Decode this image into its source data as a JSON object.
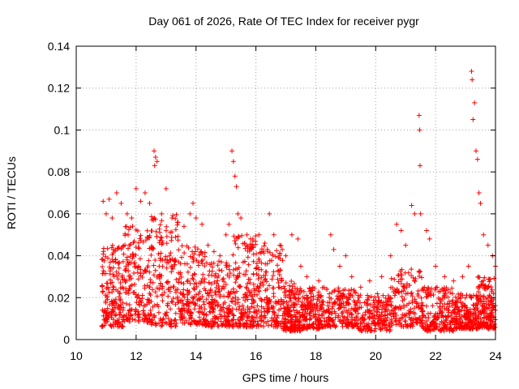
{
  "chart_data": {
    "type": "scatter",
    "title": "Day 061 of 2026, Rate Of TEC Index for receiver pygr",
    "xlabel": "GPS time / hours",
    "ylabel": "ROTI / TECUs",
    "xlim": [
      10,
      24
    ],
    "ylim": [
      0,
      0.14
    ],
    "xticks": [
      10,
      12,
      14,
      16,
      18,
      20,
      22,
      24
    ],
    "yticks": [
      0,
      0.02,
      0.04,
      0.06,
      0.08,
      0.1,
      0.12,
      0.14
    ],
    "xtick_labels": [
      "10",
      "12",
      "14",
      "16",
      "18",
      "20",
      "22",
      "24"
    ],
    "ytick_labels": [
      "0",
      "0.02",
      "0.04",
      "0.06",
      "0.08",
      "0.1",
      "0.12",
      "0.14"
    ],
    "grid": true,
    "marker": "+",
    "series": [
      {
        "name": "pygr",
        "color": "#ff0000",
        "points": [
          [
            10.9,
            0.066
          ],
          [
            11.0,
            0.06
          ],
          [
            11.1,
            0.067
          ],
          [
            11.2,
            0.058
          ],
          [
            11.35,
            0.07
          ],
          [
            11.5,
            0.065
          ],
          [
            11.7,
            0.06
          ],
          [
            11.85,
            0.058
          ],
          [
            12.0,
            0.072
          ],
          [
            12.15,
            0.066
          ],
          [
            12.3,
            0.07
          ],
          [
            12.45,
            0.065
          ],
          [
            12.6,
            0.09
          ],
          [
            12.65,
            0.087
          ],
          [
            12.7,
            0.085
          ],
          [
            12.62,
            0.083
          ],
          [
            12.85,
            0.06
          ],
          [
            13.0,
            0.072
          ],
          [
            13.2,
            0.058
          ],
          [
            13.4,
            0.056
          ],
          [
            13.6,
            0.054
          ],
          [
            13.8,
            0.06
          ],
          [
            13.9,
            0.065
          ],
          [
            14.0,
            0.058
          ],
          [
            14.2,
            0.055
          ],
          [
            14.4,
            0.045
          ],
          [
            14.6,
            0.042
          ],
          [
            14.8,
            0.04
          ],
          [
            15.0,
            0.05
          ],
          [
            15.1,
            0.055
          ],
          [
            15.2,
            0.09
          ],
          [
            15.25,
            0.085
          ],
          [
            15.3,
            0.078
          ],
          [
            15.35,
            0.073
          ],
          [
            15.4,
            0.06
          ],
          [
            15.5,
            0.058
          ],
          [
            15.7,
            0.05
          ],
          [
            15.9,
            0.048
          ],
          [
            16.1,
            0.05
          ],
          [
            16.3,
            0.046
          ],
          [
            16.45,
            0.06
          ],
          [
            16.6,
            0.05
          ],
          [
            16.8,
            0.045
          ],
          [
            17.0,
            0.04
          ],
          [
            17.2,
            0.05
          ],
          [
            17.4,
            0.048
          ],
          [
            17.5,
            0.035
          ],
          [
            17.7,
            0.03
          ],
          [
            17.9,
            0.025
          ],
          [
            18.1,
            0.028
          ],
          [
            18.5,
            0.05
          ],
          [
            18.6,
            0.043
          ],
          [
            18.8,
            0.035
          ],
          [
            19.0,
            0.04
          ],
          [
            19.2,
            0.03
          ],
          [
            19.5,
            0.025
          ],
          [
            19.8,
            0.028
          ],
          [
            20.2,
            0.03
          ],
          [
            20.5,
            0.04
          ],
          [
            20.7,
            0.055
          ],
          [
            20.85,
            0.052
          ],
          [
            21.0,
            0.045
          ],
          [
            21.2,
            0.064
          ],
          [
            21.3,
            0.06
          ],
          [
            21.45,
            0.107
          ],
          [
            21.47,
            0.1
          ],
          [
            21.48,
            0.083
          ],
          [
            21.5,
            0.06
          ],
          [
            21.7,
            0.052
          ],
          [
            21.8,
            0.048
          ],
          [
            22.0,
            0.035
          ],
          [
            22.3,
            0.03
          ],
          [
            22.6,
            0.028
          ],
          [
            22.9,
            0.03
          ],
          [
            23.1,
            0.035
          ],
          [
            23.2,
            0.128
          ],
          [
            23.22,
            0.124
          ],
          [
            23.25,
            0.105
          ],
          [
            23.3,
            0.113
          ],
          [
            23.35,
            0.09
          ],
          [
            23.4,
            0.086
          ],
          [
            23.45,
            0.07
          ],
          [
            23.5,
            0.065
          ],
          [
            23.6,
            0.05
          ],
          [
            23.75,
            0.045
          ],
          [
            23.9,
            0.04
          ],
          [
            24.0,
            0.035
          ]
        ],
        "bands": [
          {
            "x": [
              10.85,
              11.6
            ],
            "y": [
              0.006,
              0.045
            ]
          },
          {
            "x": [
              11.6,
              12.5
            ],
            "y": [
              0.008,
              0.055
            ]
          },
          {
            "x": [
              12.5,
              13.4
            ],
            "y": [
              0.006,
              0.06
            ]
          },
          {
            "x": [
              13.4,
              14.3
            ],
            "y": [
              0.007,
              0.045
            ]
          },
          {
            "x": [
              14.3,
              15.2
            ],
            "y": [
              0.006,
              0.038
            ]
          },
          {
            "x": [
              15.2,
              16.0
            ],
            "y": [
              0.006,
              0.05
            ]
          },
          {
            "x": [
              16.0,
              16.9
            ],
            "y": [
              0.006,
              0.045
            ]
          },
          {
            "x": [
              16.9,
              17.5
            ],
            "y": [
              0.004,
              0.028
            ]
          },
          {
            "x": [
              17.5,
              18.3
            ],
            "y": [
              0.005,
              0.025
            ]
          },
          {
            "x": [
              18.3,
              19.4
            ],
            "y": [
              0.006,
              0.025
            ]
          },
          {
            "x": [
              19.4,
              20.5
            ],
            "y": [
              0.004,
              0.022
            ]
          },
          {
            "x": [
              20.5,
              21.6
            ],
            "y": [
              0.006,
              0.035
            ]
          },
          {
            "x": [
              21.6,
              22.6
            ],
            "y": [
              0.004,
              0.025
            ]
          },
          {
            "x": [
              22.6,
              23.4
            ],
            "y": [
              0.005,
              0.022
            ]
          },
          {
            "x": [
              23.4,
              24.0
            ],
            "y": [
              0.005,
              0.03
            ]
          }
        ],
        "band_density": 180
      }
    ]
  }
}
